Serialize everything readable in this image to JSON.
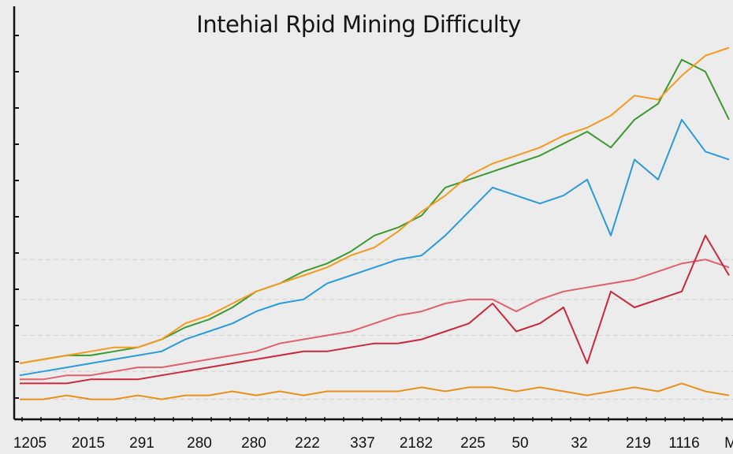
{
  "chart_data": {
    "type": "line",
    "title": "Intehial Rþid Mining Difficulty",
    "xlabel": "",
    "ylabel": "",
    "x_tick_labels": [
      "1205",
      "2015",
      "291",
      "280",
      "280",
      "222",
      "337",
      "2182",
      "225",
      "50",
      "32",
      "219",
      "1116",
      "M"
    ],
    "ylim": [
      0,
      100
    ],
    "grid": "horizontal dashed, light",
    "legend": "none",
    "series": [
      {
        "color": "#3a9a2e",
        "values": [
          14,
          15,
          16,
          16,
          17,
          18,
          20,
          23,
          25,
          28,
          32,
          34,
          37,
          39,
          42,
          46,
          48,
          51,
          58,
          60,
          62,
          64,
          66,
          69,
          72,
          68,
          75,
          79,
          90,
          87,
          75
        ]
      },
      {
        "color": "#2a9ad8",
        "values": [
          11,
          12,
          13,
          14,
          15,
          16,
          17,
          20,
          22,
          24,
          27,
          29,
          30,
          34,
          36,
          38,
          40,
          41,
          46,
          52,
          58,
          56,
          54,
          56,
          60,
          46,
          65,
          60,
          75,
          67,
          65
        ]
      },
      {
        "color": "#f39a1f",
        "values": [
          14,
          15,
          16,
          17,
          18,
          18,
          20,
          24,
          26,
          29,
          32,
          34,
          36,
          38,
          41,
          43,
          47,
          52,
          56,
          61,
          64,
          66,
          68,
          71,
          73,
          76,
          81,
          80,
          86,
          91,
          93
        ]
      },
      {
        "color": "#e0606a",
        "values": [
          10,
          10,
          11,
          11,
          12,
          13,
          13,
          14,
          15,
          16,
          17,
          19,
          20,
          21,
          22,
          24,
          26,
          27,
          29,
          30,
          30,
          27,
          30,
          32,
          33,
          34,
          35,
          37,
          39,
          40,
          38
        ]
      },
      {
        "color": "#c8283a",
        "values": [
          9,
          9,
          9,
          10,
          10,
          10,
          11,
          12,
          13,
          14,
          15,
          16,
          17,
          17,
          18,
          19,
          19,
          20,
          22,
          24,
          29,
          22,
          24,
          28,
          14,
          32,
          28,
          30,
          32,
          46,
          36
        ]
      },
      {
        "color": "#e8901a",
        "values": [
          5,
          5,
          6,
          5,
          5,
          6,
          5,
          6,
          6,
          7,
          6,
          7,
          6,
          7,
          7,
          7,
          7,
          8,
          7,
          8,
          8,
          7,
          8,
          7,
          6,
          7,
          8,
          7,
          9,
          7,
          6
        ]
      }
    ]
  }
}
